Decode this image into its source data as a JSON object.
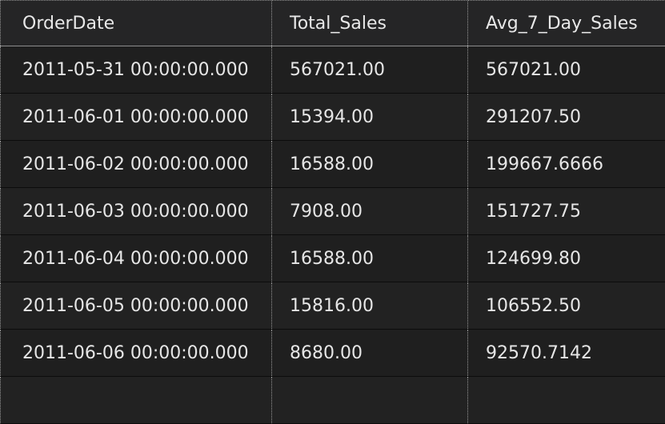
{
  "grid": {
    "columns": [
      "OrderDate",
      "Total_Sales",
      "Avg_7_Day_Sales"
    ],
    "rows": [
      [
        "2011-05-31 00:00:00.000",
        "567021.00",
        "567021.00"
      ],
      [
        "2011-06-01 00:00:00.000",
        "15394.00",
        "291207.50"
      ],
      [
        "2011-06-02 00:00:00.000",
        "16588.00",
        "199667.6666"
      ],
      [
        "2011-06-03 00:00:00.000",
        "7908.00",
        "151727.75"
      ],
      [
        "2011-06-04 00:00:00.000",
        "16588.00",
        "124699.80"
      ],
      [
        "2011-06-05 00:00:00.000",
        "15816.00",
        "106552.50"
      ],
      [
        "2011-06-06 00:00:00.000",
        "8680.00",
        "92570.7142"
      ],
      [
        "",
        "",
        ""
      ]
    ]
  },
  "colors": {
    "background": "#1e1e1e",
    "header_background": "#252526",
    "text": "#e6e6e6",
    "grid_line": "#9a9a9a"
  }
}
